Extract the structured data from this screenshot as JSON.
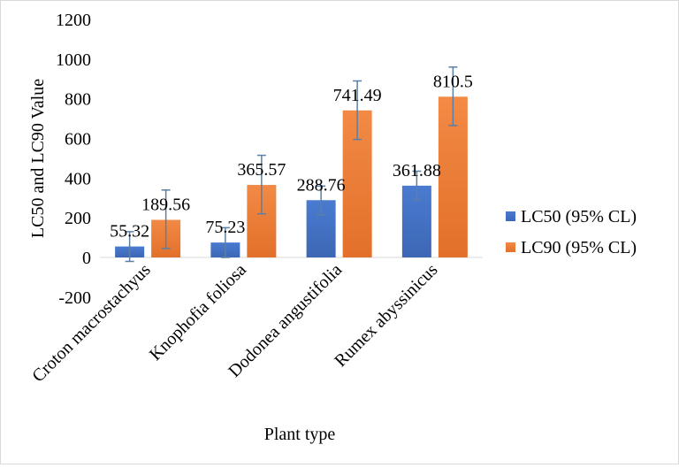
{
  "chart_data": {
    "type": "bar",
    "title": "",
    "xlabel": "Plant type",
    "ylabel": "LC50 and LC90 Value",
    "ylim": [
      -200,
      1200
    ],
    "yticks": [
      -200,
      0,
      200,
      400,
      600,
      800,
      1000,
      1200
    ],
    "ytick_labels": [
      "-200",
      "0",
      "200",
      "400",
      "600",
      "800",
      "1000",
      "1200"
    ],
    "categories": [
      "Croton macrostachyus",
      "Knophofia foliosa",
      "Dodonea  angustifolia",
      "Rumex abyssinicus"
    ],
    "grid": false,
    "legend_position": "right",
    "series": [
      {
        "name": "LC50 (95% CL)",
        "color": "#4472c4",
        "values": [
          55.32,
          75.23,
          288.76,
          361.88
        ],
        "labels": [
          "55.32",
          "75.23",
          "288.76",
          "361.88"
        ],
        "error_low": [
          -20,
          0,
          215,
          290
        ],
        "error_high": [
          130,
          150,
          360,
          435
        ]
      },
      {
        "name": "LC90 (95% CL)",
        "color": "#ed7d31",
        "values": [
          189.56,
          365.57,
          741.49,
          810.5
        ],
        "labels": [
          "189.56",
          "365.57",
          "741.49",
          "810.5"
        ],
        "error_low": [
          45,
          220,
          595,
          665
        ],
        "error_high": [
          340,
          515,
          890,
          960
        ]
      }
    ],
    "error_bar_color": "#5b7fa6"
  }
}
